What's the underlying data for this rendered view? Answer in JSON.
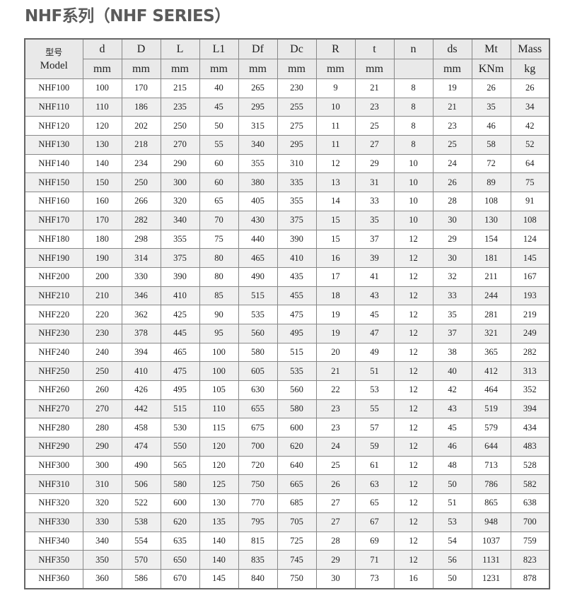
{
  "title": "NHF系列（NHF SERIES）",
  "table": {
    "model_header_cn": "型号",
    "model_header_en": "Model",
    "columns": [
      "d",
      "D",
      "L",
      "L1",
      "Df",
      "Dc",
      "R",
      "t",
      "n",
      "ds",
      "Mt",
      "Mass"
    ],
    "units": [
      "mm",
      "mm",
      "mm",
      "mm",
      "mm",
      "mm",
      "mm",
      "mm",
      "",
      "mm",
      "KNm",
      "kg"
    ],
    "rows": [
      [
        "NHF100",
        "100",
        "170",
        "215",
        "40",
        "265",
        "230",
        "9",
        "21",
        "8",
        "19",
        "26",
        "26"
      ],
      [
        "NHF110",
        "110",
        "186",
        "235",
        "45",
        "295",
        "255",
        "10",
        "23",
        "8",
        "21",
        "35",
        "34"
      ],
      [
        "NHF120",
        "120",
        "202",
        "250",
        "50",
        "315",
        "275",
        "11",
        "25",
        "8",
        "23",
        "46",
        "42"
      ],
      [
        "NHF130",
        "130",
        "218",
        "270",
        "55",
        "340",
        "295",
        "11",
        "27",
        "8",
        "25",
        "58",
        "52"
      ],
      [
        "NHF140",
        "140",
        "234",
        "290",
        "60",
        "355",
        "310",
        "12",
        "29",
        "10",
        "24",
        "72",
        "64"
      ],
      [
        "NHF150",
        "150",
        "250",
        "300",
        "60",
        "380",
        "335",
        "13",
        "31",
        "10",
        "26",
        "89",
        "75"
      ],
      [
        "NHF160",
        "160",
        "266",
        "320",
        "65",
        "405",
        "355",
        "14",
        "33",
        "10",
        "28",
        "108",
        "91"
      ],
      [
        "NHF170",
        "170",
        "282",
        "340",
        "70",
        "430",
        "375",
        "15",
        "35",
        "10",
        "30",
        "130",
        "108"
      ],
      [
        "NHF180",
        "180",
        "298",
        "355",
        "75",
        "440",
        "390",
        "15",
        "37",
        "12",
        "29",
        "154",
        "124"
      ],
      [
        "NHF190",
        "190",
        "314",
        "375",
        "80",
        "465",
        "410",
        "16",
        "39",
        "12",
        "30",
        "181",
        "145"
      ],
      [
        "NHF200",
        "200",
        "330",
        "390",
        "80",
        "490",
        "435",
        "17",
        "41",
        "12",
        "32",
        "211",
        "167"
      ],
      [
        "NHF210",
        "210",
        "346",
        "410",
        "85",
        "515",
        "455",
        "18",
        "43",
        "12",
        "33",
        "244",
        "193"
      ],
      [
        "NHF220",
        "220",
        "362",
        "425",
        "90",
        "535",
        "475",
        "19",
        "45",
        "12",
        "35",
        "281",
        "219"
      ],
      [
        "NHF230",
        "230",
        "378",
        "445",
        "95",
        "560",
        "495",
        "19",
        "47",
        "12",
        "37",
        "321",
        "249"
      ],
      [
        "NHF240",
        "240",
        "394",
        "465",
        "100",
        "580",
        "515",
        "20",
        "49",
        "12",
        "38",
        "365",
        "282"
      ],
      [
        "NHF250",
        "250",
        "410",
        "475",
        "100",
        "605",
        "535",
        "21",
        "51",
        "12",
        "40",
        "412",
        "313"
      ],
      [
        "NHF260",
        "260",
        "426",
        "495",
        "105",
        "630",
        "560",
        "22",
        "53",
        "12",
        "42",
        "464",
        "352"
      ],
      [
        "NHF270",
        "270",
        "442",
        "515",
        "110",
        "655",
        "580",
        "23",
        "55",
        "12",
        "43",
        "519",
        "394"
      ],
      [
        "NHF280",
        "280",
        "458",
        "530",
        "115",
        "675",
        "600",
        "23",
        "57",
        "12",
        "45",
        "579",
        "434"
      ],
      [
        "NHF290",
        "290",
        "474",
        "550",
        "120",
        "700",
        "620",
        "24",
        "59",
        "12",
        "46",
        "644",
        "483"
      ],
      [
        "NHF300",
        "300",
        "490",
        "565",
        "120",
        "720",
        "640",
        "25",
        "61",
        "12",
        "48",
        "713",
        "528"
      ],
      [
        "NHF310",
        "310",
        "506",
        "580",
        "125",
        "750",
        "665",
        "26",
        "63",
        "12",
        "50",
        "786",
        "582"
      ],
      [
        "NHF320",
        "320",
        "522",
        "600",
        "130",
        "770",
        "685",
        "27",
        "65",
        "12",
        "51",
        "865",
        "638"
      ],
      [
        "NHF330",
        "330",
        "538",
        "620",
        "135",
        "795",
        "705",
        "27",
        "67",
        "12",
        "53",
        "948",
        "700"
      ],
      [
        "NHF340",
        "340",
        "554",
        "635",
        "140",
        "815",
        "725",
        "28",
        "69",
        "12",
        "54",
        "1037",
        "759"
      ],
      [
        "NHF350",
        "350",
        "570",
        "650",
        "140",
        "835",
        "745",
        "29",
        "71",
        "12",
        "56",
        "1131",
        "823"
      ],
      [
        "NHF360",
        "360",
        "586",
        "670",
        "145",
        "840",
        "750",
        "30",
        "73",
        "16",
        "50",
        "1231",
        "878"
      ]
    ]
  }
}
